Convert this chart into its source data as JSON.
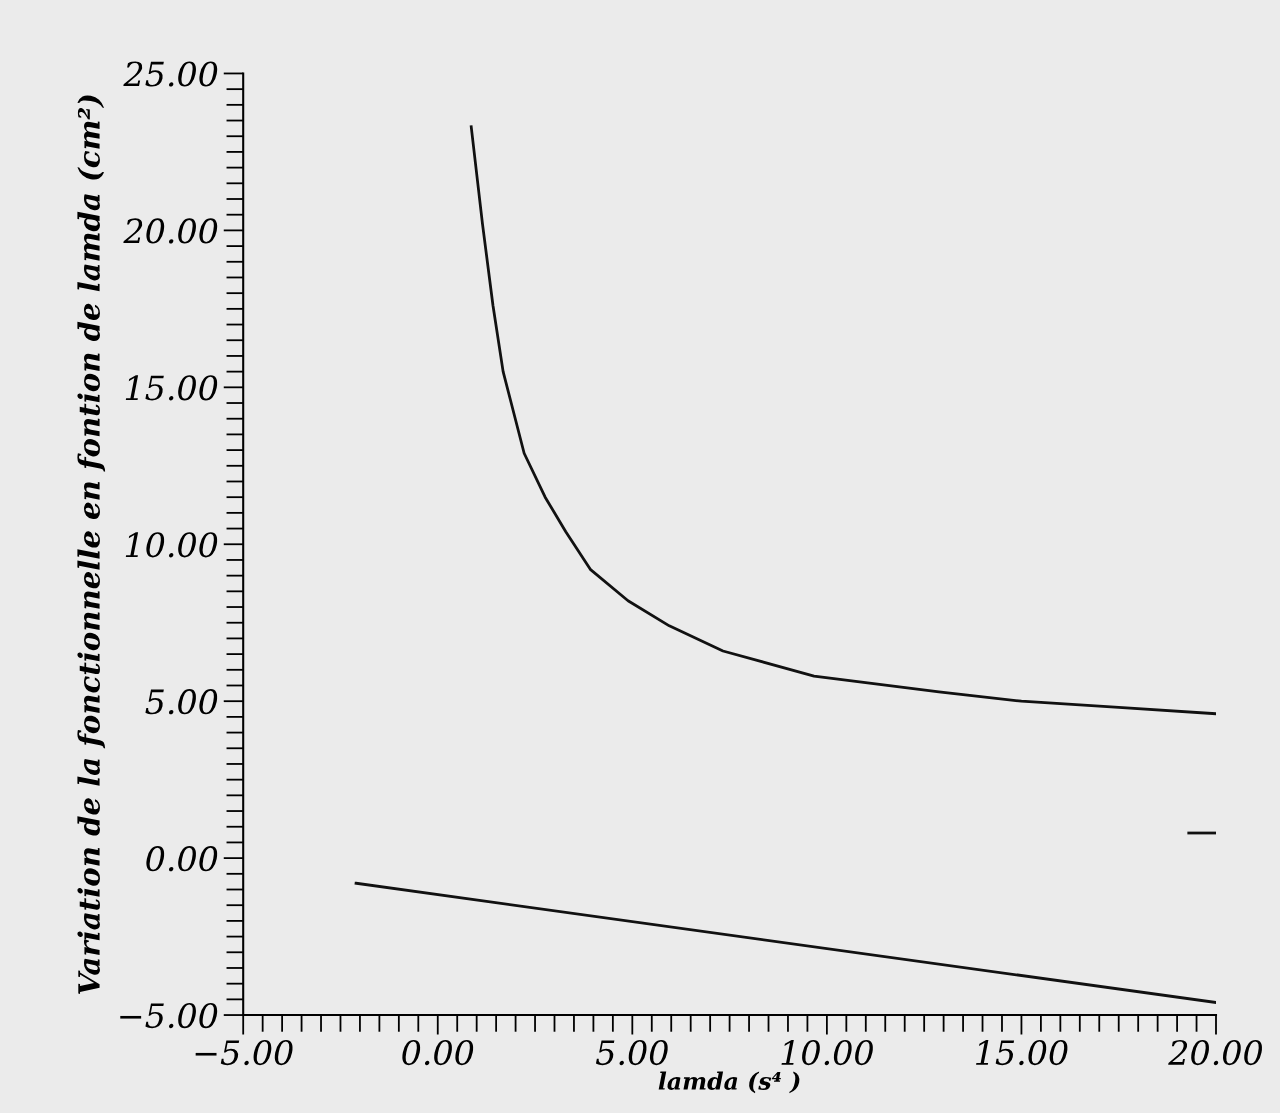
{
  "chart_data": {
    "type": "line",
    "xlabel": "lamda (s⁴ )",
    "ylabel": "Variation de la fonctionnelle en fontion de lamda (cm²)",
    "xlim": [
      -5,
      20
    ],
    "ylim": [
      -5,
      25
    ],
    "xticks": [
      {
        "value": -5,
        "label": "−5.00"
      },
      {
        "value": 0,
        "label": "0.00"
      },
      {
        "value": 5,
        "label": "5.00"
      },
      {
        "value": 10,
        "label": "10.00"
      },
      {
        "value": 15,
        "label": "15.00"
      },
      {
        "value": 20,
        "label": "20.00"
      }
    ],
    "yticks": [
      {
        "value": -5,
        "label": "−5.00"
      },
      {
        "value": 0,
        "label": "0.00"
      },
      {
        "value": 5,
        "label": "5.00"
      },
      {
        "value": 10,
        "label": "10.00"
      },
      {
        "value": 15,
        "label": "15.00"
      },
      {
        "value": 20,
        "label": "20.00"
      },
      {
        "value": 25,
        "label": "25.00"
      }
    ],
    "grid": false,
    "marker": "none",
    "line_style": "solid",
    "series": [
      {
        "color": "#111111",
        "x": [
          0.86,
          1.15,
          1.42,
          1.68,
          2.22,
          2.76,
          3.29,
          3.92,
          4.89,
          5.95,
          7.33,
          9.67,
          12.88,
          15.0,
          17.5,
          20.0
        ],
        "values": [
          23.3,
          20.2,
          17.6,
          15.5,
          12.9,
          11.5,
          10.4,
          9.2,
          8.2,
          7.4,
          6.6,
          5.8,
          5.3,
          5.0,
          4.8,
          4.6
        ]
      },
      {
        "color": "#111111",
        "x": [
          -2.1,
          20.0
        ],
        "values": [
          -0.8,
          -4.6
        ]
      },
      {
        "color": "#111111",
        "x": [
          19.3,
          20.0
        ],
        "values": [
          0.8,
          0.8
        ]
      }
    ]
  }
}
